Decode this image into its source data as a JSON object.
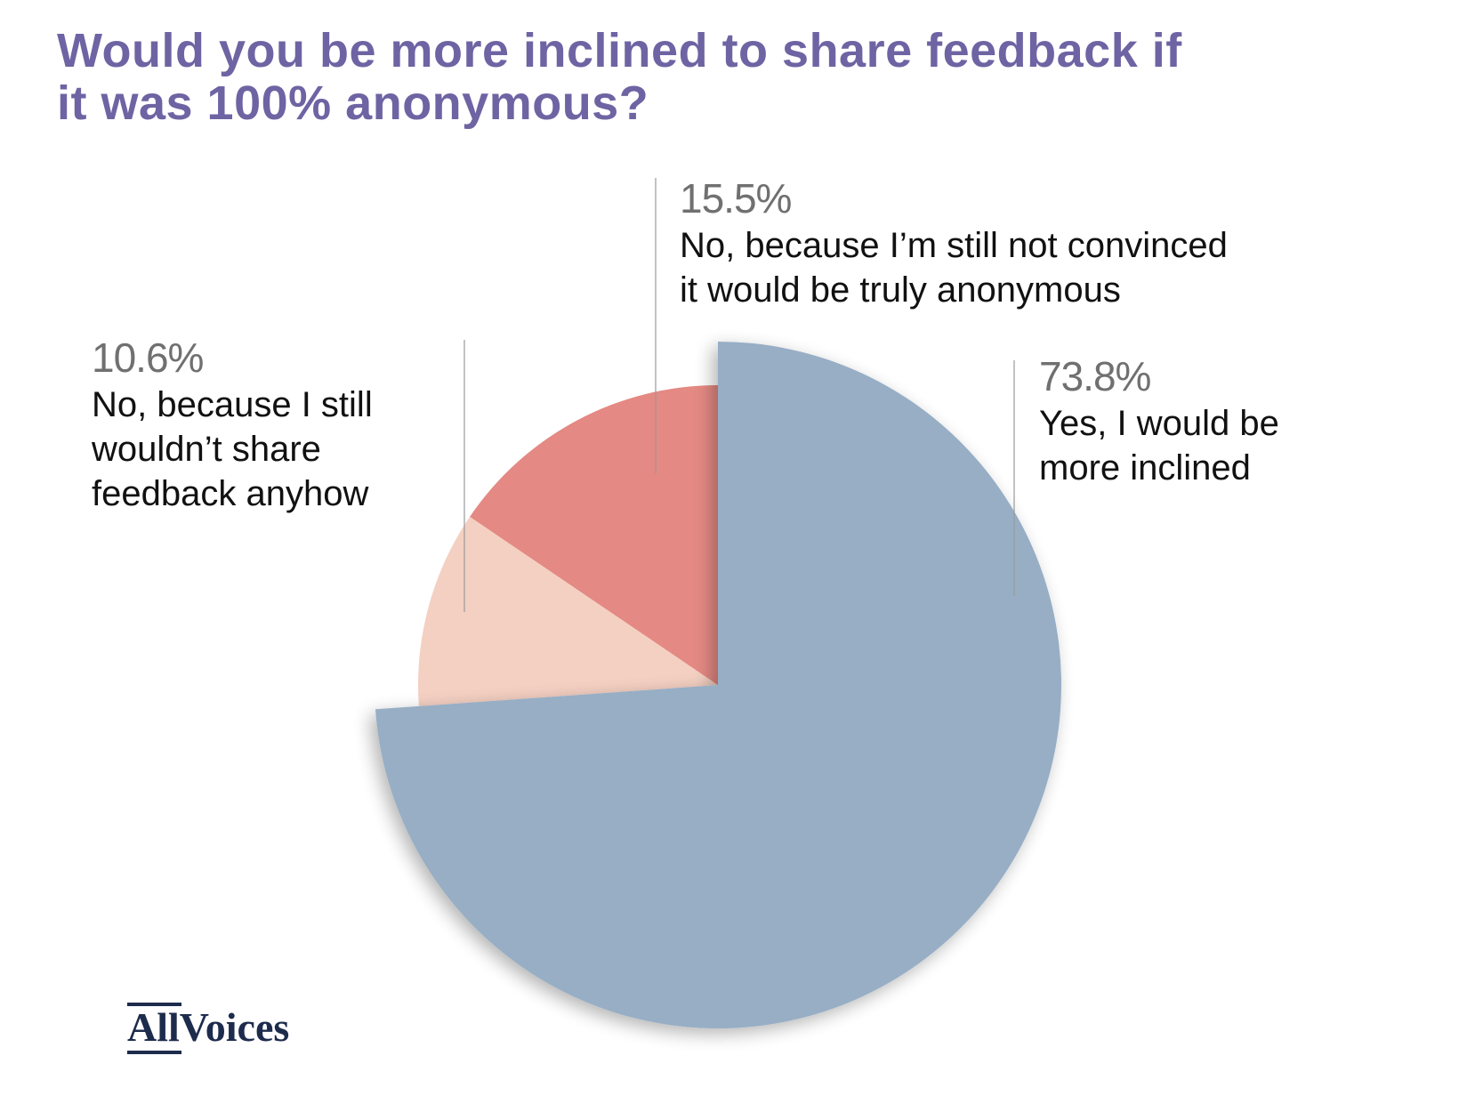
{
  "title_lines": [
    "Would you be more inclined to share feedback if",
    "it was 100% anonymous?"
  ],
  "colors": {
    "title": "#6e64a3",
    "yes": "#97aec5",
    "wouldnt_share": "#f4d0c2",
    "not_convinced": "#e48983",
    "leader_line": "#9a9a9a",
    "logo": "#1d2b4c"
  },
  "logo": {
    "part1": "All",
    "part2": "Voices"
  },
  "chart_data": {
    "type": "pie",
    "title": "Would you be more inclined to share feedback if it was 100% anonymous?",
    "slices": [
      {
        "pct_label": "73.8%",
        "value": 73.8,
        "label_lines": [
          "Yes, I would be",
          "more inclined"
        ],
        "color": "#97aec5",
        "exploded": true
      },
      {
        "pct_label": "10.6%",
        "value": 10.6,
        "label_lines": [
          "No, because I still",
          "wouldn’t share",
          "feedback anyhow"
        ],
        "color": "#f4d0c2",
        "exploded": false
      },
      {
        "pct_label": "15.5%",
        "value": 15.5,
        "label_lines": [
          "No, because I’m still not convinced",
          "it would be truly anonymous"
        ],
        "color": "#e48983",
        "exploded": false
      }
    ],
    "start": "12 o'clock",
    "direction": "clockwise",
    "legend": "none"
  }
}
